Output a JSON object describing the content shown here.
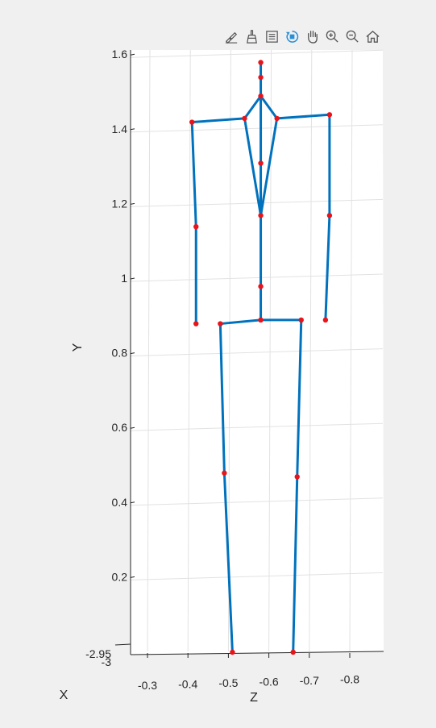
{
  "toolbar": {
    "icons": [
      "brush-edit-icon",
      "data-cursor-icon",
      "legend-icon",
      "rotate-3d-icon",
      "pan-hand-icon",
      "zoom-in-icon",
      "zoom-out-icon",
      "home-icon"
    ],
    "active": "rotate-3d-icon"
  },
  "chart_data": {
    "type": "line",
    "title": "",
    "xlabel": "X",
    "ylabel": "Y",
    "zlabel": "Z",
    "grid": true,
    "ylim": [
      0,
      1.6
    ],
    "zlim": [
      -0.25,
      -0.88
    ],
    "y_ticks": [
      "0.2",
      "0.4",
      "0.6",
      "0.8",
      "1",
      "1.2",
      "1.4",
      "1.6"
    ],
    "z_ticks": [
      "-0.3",
      "-0.4",
      "-0.5",
      "-0.6",
      "-0.7",
      "-0.8"
    ],
    "x_ticks": [
      "-2.95",
      "-3"
    ],
    "line_color": "#0072bd",
    "marker_color": "#e8141a",
    "joints": [
      {
        "z": -0.58,
        "y": 1.58
      },
      {
        "z": -0.58,
        "y": 1.54
      },
      {
        "z": -0.58,
        "y": 1.49
      },
      {
        "z": -0.58,
        "y": 1.31
      },
      {
        "z": -0.58,
        "y": 1.17
      },
      {
        "z": -0.58,
        "y": 0.98
      },
      {
        "z": -0.58,
        "y": 0.89
      },
      {
        "z": -0.54,
        "y": 1.43
      },
      {
        "z": -0.41,
        "y": 1.42
      },
      {
        "z": -0.42,
        "y": 1.14
      },
      {
        "z": -0.42,
        "y": 0.88
      },
      {
        "z": -0.62,
        "y": 1.43
      },
      {
        "z": -0.75,
        "y": 1.44
      },
      {
        "z": -0.75,
        "y": 1.17
      },
      {
        "z": -0.74,
        "y": 0.89
      },
      {
        "z": -0.48,
        "y": 0.88
      },
      {
        "z": -0.49,
        "y": 0.48
      },
      {
        "z": -0.51,
        "y": 0.0
      },
      {
        "z": -0.68,
        "y": 0.89
      },
      {
        "z": -0.67,
        "y": 0.47
      },
      {
        "z": -0.66,
        "y": 0.0
      }
    ],
    "bones": [
      [
        0,
        1
      ],
      [
        1,
        2
      ],
      [
        2,
        3
      ],
      [
        3,
        4
      ],
      [
        4,
        5
      ],
      [
        5,
        6
      ],
      [
        2,
        7
      ],
      [
        7,
        4
      ],
      [
        7,
        8
      ],
      [
        8,
        9
      ],
      [
        9,
        10
      ],
      [
        4,
        11
      ],
      [
        2,
        11
      ],
      [
        11,
        12
      ],
      [
        12,
        13
      ],
      [
        13,
        14
      ],
      [
        6,
        15
      ],
      [
        15,
        16
      ],
      [
        16,
        17
      ],
      [
        6,
        18
      ],
      [
        18,
        19
      ],
      [
        19,
        20
      ]
    ]
  }
}
